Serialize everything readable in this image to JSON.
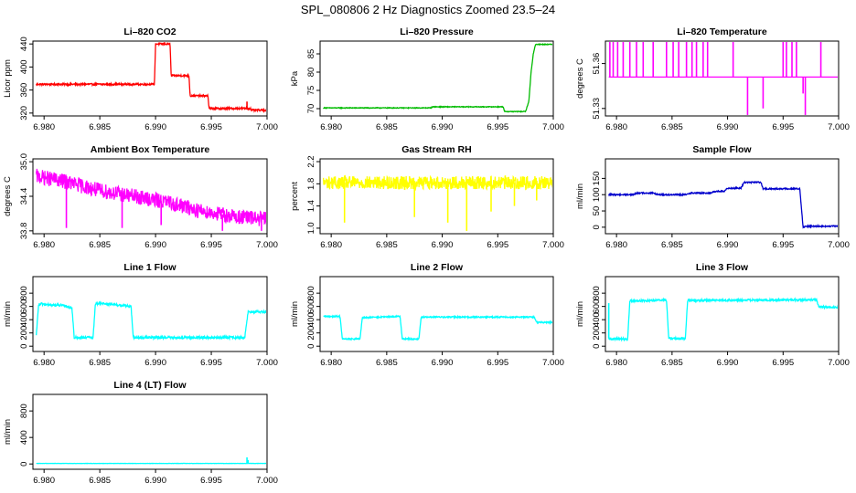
{
  "title": "SPL_080806  2 Hz Diagnostics Zoomed 23.5–24",
  "chart_data": [
    {
      "type": "line",
      "title": "Li–820 CO2",
      "ylabel": "Licor ppm",
      "color": "#ff0000",
      "xlim": [
        6.979,
        7.0
      ],
      "ylim": [
        315,
        445
      ],
      "xticks": [
        6.98,
        6.985,
        6.99,
        6.995,
        7.0
      ],
      "xtick_labels": [
        "6.980",
        "6.985",
        "6.990",
        "6.995",
        "7.000"
      ],
      "yticks": [
        320,
        360,
        400,
        440
      ],
      "ytick_labels": [
        "320",
        "360",
        "400",
        "440"
      ],
      "noise": 1.5,
      "spikes": [
        [
          6.9982,
          340
        ]
      ],
      "x": [
        6.9793,
        6.9899,
        6.99,
        6.9913,
        6.9914,
        6.993,
        6.9931,
        6.9947,
        6.9948,
        6.9985,
        6.9986,
        7.0
      ],
      "y": [
        370,
        370,
        440,
        440,
        385,
        385,
        350,
        350,
        328,
        328,
        325,
        325
      ]
    },
    {
      "type": "line",
      "title": "Li–820 Pressure",
      "ylabel": "kPa",
      "color": "#00bb00",
      "xlim": [
        6.979,
        7.0
      ],
      "ylim": [
        68,
        88.5
      ],
      "xticks": [
        6.98,
        6.985,
        6.99,
        6.995,
        7.0
      ],
      "xtick_labels": [
        "6.980",
        "6.985",
        "6.990",
        "6.995",
        "7.000"
      ],
      "yticks": [
        70,
        75,
        80,
        85
      ],
      "ytick_labels": [
        "70",
        "75",
        "80",
        "85"
      ],
      "noise": 0.1,
      "spikes": [],
      "x": [
        6.9793,
        6.989,
        6.9891,
        6.9955,
        6.9956,
        6.9975,
        6.9978,
        6.998,
        6.9982,
        6.9984,
        7.0
      ],
      "y": [
        70.2,
        70.2,
        70.5,
        70.5,
        69.2,
        69.2,
        72,
        80,
        85,
        87.6,
        87.6
      ]
    },
    {
      "type": "line",
      "title": "Li–820 Temperature",
      "ylabel": "degrees C",
      "color": "#ff00ff",
      "xlim": [
        6.979,
        7.0
      ],
      "ylim": [
        51.325,
        51.375
      ],
      "xticks": [
        6.98,
        6.985,
        6.99,
        6.995,
        7.0
      ],
      "xtick_labels": [
        "6.980",
        "6.985",
        "6.990",
        "6.995",
        "7.000"
      ],
      "yticks": [
        51.33,
        51.36
      ],
      "ytick_labels": [
        "51.33",
        "51.36"
      ],
      "noise": 0,
      "spikes": [
        [
          6.9794,
          51.375
        ],
        [
          6.9797,
          51.375
        ],
        [
          6.9801,
          51.375
        ],
        [
          6.9806,
          51.375
        ],
        [
          6.9812,
          51.375
        ],
        [
          6.9818,
          51.375
        ],
        [
          6.9824,
          51.375
        ],
        [
          6.9833,
          51.375
        ],
        [
          6.9845,
          51.375
        ],
        [
          6.9851,
          51.375
        ],
        [
          6.9856,
          51.375
        ],
        [
          6.9863,
          51.375
        ],
        [
          6.9868,
          51.375
        ],
        [
          6.9872,
          51.375
        ],
        [
          6.9878,
          51.375
        ],
        [
          6.9882,
          51.375
        ],
        [
          6.9905,
          51.375
        ],
        [
          6.995,
          51.375
        ],
        [
          6.9953,
          51.375
        ],
        [
          6.9958,
          51.375
        ],
        [
          6.9962,
          51.375
        ],
        [
          6.9984,
          51.375
        ],
        [
          6.9918,
          51.325
        ],
        [
          6.9932,
          51.33
        ],
        [
          6.9968,
          51.34
        ],
        [
          6.997,
          51.325
        ]
      ],
      "x": [
        6.9793,
        7.0
      ],
      "y": [
        51.351,
        51.351
      ]
    },
    {
      "type": "line",
      "title": "Ambient Box Temperature",
      "ylabel": "degrees C",
      "color": "#ff00ff",
      "xlim": [
        6.979,
        7.0
      ],
      "ylim": [
        33.75,
        35.05
      ],
      "xticks": [
        6.98,
        6.985,
        6.99,
        6.995,
        7.0
      ],
      "xtick_labels": [
        "6.980",
        "6.985",
        "6.990",
        "6.995",
        "7.000"
      ],
      "yticks": [
        33.8,
        34.4,
        35.0
      ],
      "ytick_labels": [
        "33.8",
        "34.4",
        "35.0"
      ],
      "noise": 0.13,
      "spikes": [
        [
          6.982,
          33.85
        ],
        [
          6.987,
          33.85
        ],
        [
          6.9905,
          33.9
        ],
        [
          6.996,
          33.8
        ],
        [
          6.9995,
          33.8
        ]
      ],
      "x": [
        6.9793,
        6.982,
        6.985,
        6.988,
        6.991,
        6.994,
        6.997,
        7.0
      ],
      "y": [
        34.75,
        34.65,
        34.5,
        34.4,
        34.3,
        34.15,
        34.05,
        34.0
      ]
    },
    {
      "type": "line",
      "title": "Gas Stream RH",
      "ylabel": "percent",
      "color": "#ffff00",
      "xlim": [
        6.979,
        7.0
      ],
      "ylim": [
        0.9,
        2.25
      ],
      "xticks": [
        6.98,
        6.985,
        6.99,
        6.995,
        7.0
      ],
      "xtick_labels": [
        "6.980",
        "6.985",
        "6.990",
        "6.995",
        "7.000"
      ],
      "yticks": [
        1.0,
        1.4,
        1.8,
        2.2
      ],
      "ytick_labels": [
        "1.0",
        "1.4",
        "1.8",
        "2.2"
      ],
      "noise": 0.12,
      "spikes": [
        [
          6.9812,
          1.1
        ],
        [
          6.9875,
          1.2
        ],
        [
          6.9905,
          1.1
        ],
        [
          6.9922,
          0.95
        ],
        [
          6.9944,
          1.3
        ],
        [
          6.9965,
          1.4
        ],
        [
          6.9985,
          1.5
        ]
      ],
      "x": [
        6.9793,
        7.0
      ],
      "y": [
        1.82,
        1.82
      ]
    },
    {
      "type": "line",
      "title": "Sample Flow",
      "ylabel": "ml/min",
      "color": "#0000cc",
      "xlim": [
        6.979,
        7.0
      ],
      "ylim": [
        -20,
        210
      ],
      "xticks": [
        6.98,
        6.985,
        6.99,
        6.995,
        7.0
      ],
      "xtick_labels": [
        "6.980",
        "6.985",
        "6.990",
        "6.995",
        "7.000"
      ],
      "yticks": [
        0,
        50,
        100,
        150
      ],
      "ytick_labels": [
        "0",
        "50",
        "100",
        "150"
      ],
      "noise": 2,
      "spikes": [],
      "x": [
        6.9793,
        6.9815,
        6.9818,
        6.9833,
        6.9838,
        6.9863,
        6.9866,
        6.9885,
        6.9888,
        6.9897,
        6.99,
        6.9912,
        6.9915,
        6.993,
        6.9932,
        6.9965,
        6.9968,
        6.9972,
        7.0
      ],
      "y": [
        100,
        100,
        105,
        105,
        100,
        100,
        105,
        105,
        110,
        110,
        120,
        120,
        138,
        138,
        118,
        118,
        0,
        3,
        3
      ]
    },
    {
      "type": "line",
      "title": "Line 1 Flow",
      "ylabel": "ml/min",
      "color": "#00ffff",
      "xlim": [
        6.979,
        7.0
      ],
      "ylim": [
        -80,
        1050
      ],
      "xticks": [
        6.98,
        6.985,
        6.99,
        6.995,
        7.0
      ],
      "xtick_labels": [
        "6.980",
        "6.985",
        "6.990",
        "6.995",
        "7.000"
      ],
      "yticks": [
        0,
        200,
        400,
        600,
        800
      ],
      "ytick_labels": [
        "0",
        "200",
        "400",
        "600",
        "800"
      ],
      "noise": 18,
      "spikes": [],
      "x": [
        6.9793,
        6.9795,
        6.9798,
        6.9805,
        6.9815,
        6.9825,
        6.9827,
        6.9844,
        6.9846,
        6.985,
        6.9878,
        6.988,
        6.998,
        6.9983,
        7.0
      ],
      "y": [
        150,
        620,
        640,
        620,
        620,
        580,
        130,
        130,
        640,
        650,
        600,
        130,
        130,
        520,
        520
      ]
    },
    {
      "type": "line",
      "title": "Line 2 Flow",
      "ylabel": "ml/min",
      "color": "#00ffff",
      "xlim": [
        6.979,
        7.0
      ],
      "ylim": [
        -80,
        1050
      ],
      "xticks": [
        6.98,
        6.985,
        6.99,
        6.995,
        7.0
      ],
      "xtick_labels": [
        "6.980",
        "6.985",
        "6.990",
        "6.995",
        "7.000"
      ],
      "yticks": [
        0,
        200,
        400,
        600,
        800
      ],
      "ytick_labels": [
        "0",
        "200",
        "400",
        "600",
        "800"
      ],
      "noise": 10,
      "spikes": [],
      "x": [
        6.9793,
        6.9808,
        6.981,
        6.9826,
        6.9828,
        6.9862,
        6.9864,
        6.9879,
        6.9881,
        6.9983,
        6.9985,
        7.0
      ],
      "y": [
        450,
        450,
        110,
        110,
        430,
        450,
        110,
        110,
        440,
        440,
        360,
        360
      ]
    },
    {
      "type": "line",
      "title": "Line 3 Flow",
      "ylabel": "ml/min",
      "color": "#00ffff",
      "xlim": [
        6.979,
        7.0
      ],
      "ylim": [
        -80,
        1050
      ],
      "xticks": [
        6.98,
        6.985,
        6.99,
        6.995,
        7.0
      ],
      "xtick_labels": [
        "6.980",
        "6.985",
        "6.990",
        "6.995",
        "7.000"
      ],
      "yticks": [
        0,
        200,
        400,
        600,
        800
      ],
      "ytick_labels": [
        "0",
        "200",
        "400",
        "600",
        "800"
      ],
      "noise": 15,
      "spikes": [
        [
          6.9793,
          650
        ]
      ],
      "x": [
        6.9793,
        6.9795,
        6.981,
        6.9812,
        6.9845,
        6.9847,
        6.9862,
        6.9864,
        6.998,
        6.9982,
        7.0
      ],
      "y": [
        120,
        110,
        110,
        680,
        700,
        120,
        120,
        690,
        700,
        600,
        580
      ]
    },
    {
      "type": "line",
      "title": "Line 4 (LT) Flow",
      "ylabel": "ml/min",
      "color": "#00ffff",
      "xlim": [
        6.979,
        7.0
      ],
      "ylim": [
        -80,
        1050
      ],
      "xticks": [
        6.98,
        6.985,
        6.99,
        6.995,
        7.0
      ],
      "xtick_labels": [
        "6.980",
        "6.985",
        "6.990",
        "6.995",
        "7.000"
      ],
      "yticks": [
        0,
        400,
        800
      ],
      "ytick_labels": [
        "0",
        "400",
        "800"
      ],
      "noise": 2,
      "spikes": [
        [
          6.9982,
          100
        ],
        [
          6.9983,
          60
        ]
      ],
      "x": [
        6.9793,
        7.0
      ],
      "y": [
        8,
        8
      ]
    }
  ]
}
